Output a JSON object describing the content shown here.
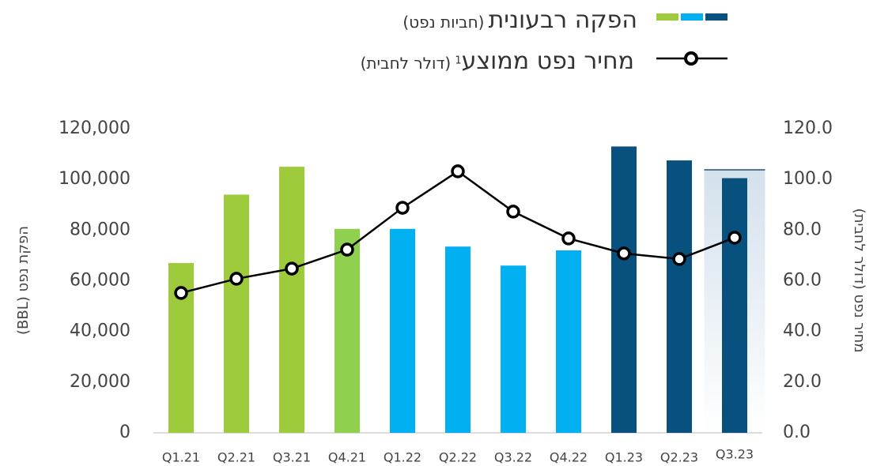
{
  "chart_data": {
    "type": "bar_line",
    "categories": [
      "Q1.21",
      "Q2.21",
      "Q3.21",
      "Q4.21",
      "Q1.22",
      "Q2.22",
      "Q3.22",
      "Q4.22",
      "Q1.23",
      "Q2.23",
      "Q3.23"
    ],
    "series": [
      {
        "name": "הפקה רבעונית",
        "type": "bar",
        "axis": "y",
        "colors": [
          "#9ecb3c",
          "#9ecb3c",
          "#9ecb3c",
          "#8fd04f",
          "#00b0f0",
          "#00b0f0",
          "#00b0f0",
          "#00b0f0",
          "#08507e",
          "#08507e",
          "#08507e"
        ],
        "values": [
          67000,
          94000,
          105000,
          80500,
          80500,
          73500,
          66000,
          72000,
          113000,
          107500,
          100500
        ]
      },
      {
        "name": "מחיר נפט ממוצע",
        "type": "line",
        "axis": "y2",
        "color": "#000000",
        "values": [
          55.2,
          60.8,
          64.8,
          72.3,
          88.8,
          103.2,
          87.3,
          76.7,
          70.8,
          68.6,
          77.0
        ]
      }
    ],
    "legend_units": [
      "(חביות נפט)",
      "(דולר לחבית)"
    ],
    "legend_note": "1",
    "y_label": "הפקת נפט (BBL)",
    "y2_label": "מחיר נפט (דולר לחבית)",
    "ylim": [
      0,
      120000
    ],
    "yticks": [
      0,
      {
        "value": 20000,
        "label": "20,000"
      },
      {
        "value": 40000,
        "label": "40,000"
      },
      {
        "value": 60000,
        "label": "60,000"
      },
      {
        "value": 80000,
        "label": "80,000"
      },
      {
        "value": 100000,
        "label": "100,000"
      },
      {
        "value": 120000,
        "label": "120,000"
      }
    ],
    "y2lim": [
      0,
      120
    ],
    "y2ticks": [
      {
        "value": 0,
        "label": "0.0"
      },
      {
        "value": 20,
        "label": "20.0"
      },
      {
        "value": 40,
        "label": "40.0"
      },
      {
        "value": 60,
        "label": "60.0"
      },
      {
        "value": 80,
        "label": "80.0"
      },
      {
        "value": 100,
        "label": "100.0"
      },
      {
        "value": 120,
        "label": "120.0"
      }
    ],
    "grid": false
  }
}
